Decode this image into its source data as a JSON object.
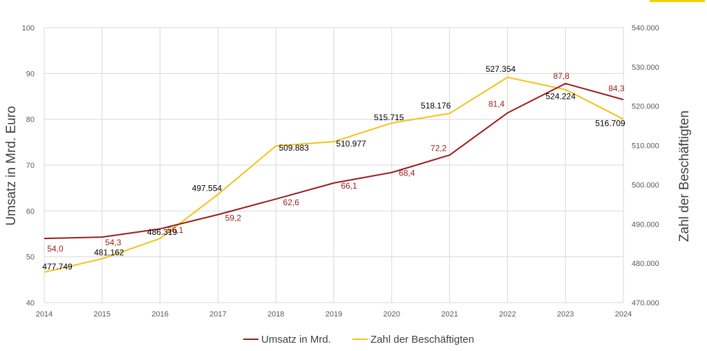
{
  "colors": {
    "revenue": "#9B1B1B",
    "employees": "#F2C314",
    "grid": "#D9D9D9",
    "accent": "#F5D000"
  },
  "chart_data": {
    "type": "line",
    "x": [
      2014,
      2015,
      2016,
      2017,
      2018,
      2019,
      2020,
      2021,
      2022,
      2023,
      2024
    ],
    "ylabel": "Umsatz in Mrd. Euro",
    "ylabel_right": "Zahl der Beschäftigten",
    "ylim": [
      40,
      100
    ],
    "ylim_right": [
      470000,
      540000
    ],
    "yticks": [
      "40",
      "50",
      "60",
      "70",
      "80",
      "90",
      "100"
    ],
    "yticks_right": [
      "470.000",
      "480.000",
      "490.000",
      "500.000",
      "510.000",
      "520.000",
      "530.000",
      "540.000"
    ],
    "grid": true,
    "legend_position": "bottom-center",
    "series": [
      {
        "name": "Umsatz in Mrd.",
        "axis": "left",
        "values": [
          54.0,
          54.3,
          56.1,
          59.2,
          62.6,
          66.1,
          68.4,
          72.2,
          81.4,
          87.8,
          84.3
        ],
        "labels": [
          "54,0",
          "54,3",
          "56,1",
          "59,2",
          "62,6",
          "66,1",
          "68,4",
          "72,2",
          "81,4",
          "87,8",
          "84,3"
        ]
      },
      {
        "name": "Zahl der Beschäftigten",
        "axis": "right",
        "values": [
          477749,
          481162,
          486319,
          497554,
          509883,
          510977,
          515715,
          518176,
          527354,
          524224,
          516709
        ],
        "labels": [
          "477.749",
          "481.162",
          "486.319",
          "497.554",
          "509.883",
          "510.977",
          "515.715",
          "518.176",
          "527.354",
          "524.224",
          "516.709"
        ]
      }
    ]
  }
}
